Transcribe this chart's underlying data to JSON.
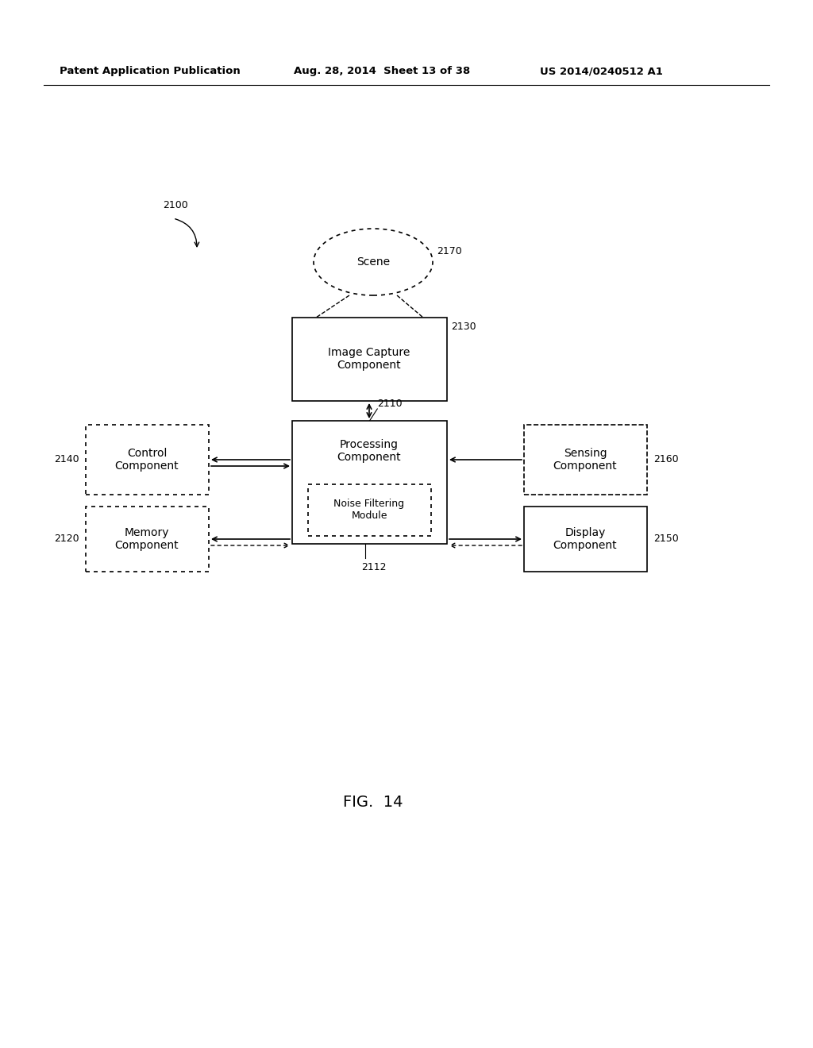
{
  "title_left": "Patent Application Publication",
  "title_mid": "Aug. 28, 2014  Sheet 13 of 38",
  "title_right": "US 2014/0240512 A1",
  "fig_label": "FIG.  14",
  "bg_color": "#ffffff",
  "text_color": "#000000"
}
